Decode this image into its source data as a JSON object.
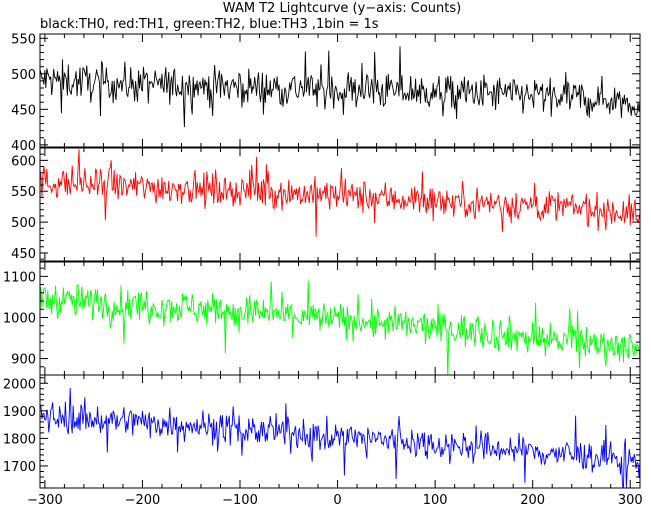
{
  "chart_data": {
    "type": "line",
    "title": "WAM T2 Lightcurve (y−axis: Counts)",
    "subtitle": "black:TH0, red:TH1, green:TH2, blue:TH3 ,1bin = 1s",
    "xlabel": "",
    "ylabel": "",
    "xlim": [
      -305,
      310
    ],
    "x_ticks": [
      -300,
      -200,
      -100,
      0,
      100,
      200,
      300
    ],
    "x_tick_labels": [
      "−300",
      "−200",
      "−100",
      "0",
      "100",
      "200",
      "300"
    ],
    "bin_seconds": 1,
    "grid": false,
    "legend": "none",
    "panels": [
      {
        "name": "TH0",
        "color": "#000000",
        "ylim": [
          397,
          556
        ],
        "y_ticks": [
          400,
          450,
          500,
          550
        ],
        "y_tick_labels": [
          "400",
          "450",
          "500",
          "550"
        ],
        "x": [
          -300,
          -275,
          -250,
          -225,
          -200,
          -175,
          -150,
          -125,
          -100,
          -75,
          -50,
          -25,
          0,
          25,
          50,
          75,
          100,
          125,
          150,
          175,
          200,
          225,
          250,
          275,
          300,
          310
        ],
        "values": [
          492,
          490,
          488,
          486,
          485,
          484,
          484,
          483,
          482,
          481,
          480,
          479,
          478,
          477,
          476,
          475,
          474,
          473,
          472,
          471,
          470,
          468,
          466,
          464,
          462,
          455
        ],
        "scatter": 24
      },
      {
        "name": "TH1",
        "color": "#ff0000",
        "ylim": [
          437,
          620
        ],
        "y_ticks": [
          450,
          500,
          550,
          600
        ],
        "y_tick_labels": [
          "450",
          "500",
          "550",
          "600"
        ],
        "x": [
          -300,
          -275,
          -250,
          -225,
          -200,
          -175,
          -150,
          -125,
          -100,
          -75,
          -50,
          -25,
          0,
          25,
          50,
          75,
          100,
          125,
          150,
          175,
          200,
          225,
          250,
          275,
          300,
          310
        ],
        "values": [
          565,
          563,
          560,
          558,
          557,
          556,
          555,
          553,
          551,
          549,
          547,
          545,
          543,
          541,
          539,
          537,
          535,
          533,
          531,
          529,
          527,
          525,
          522,
          518,
          515,
          505
        ],
        "scatter": 24
      },
      {
        "name": "TH2",
        "color": "#00ff00",
        "ylim": [
          860,
          1135
        ],
        "y_ticks": [
          900,
          1000,
          1100
        ],
        "y_tick_labels": [
          "900",
          "1000",
          "1100"
        ],
        "x": [
          -300,
          -275,
          -250,
          -225,
          -200,
          -175,
          -150,
          -125,
          -100,
          -75,
          -50,
          -25,
          0,
          25,
          50,
          75,
          100,
          125,
          150,
          175,
          200,
          225,
          250,
          275,
          300,
          310
        ],
        "values": [
          1045,
          1040,
          1036,
          1032,
          1030,
          1027,
          1024,
          1020,
          1015,
          1010,
          1005,
          1000,
          995,
          990,
          985,
          980,
          975,
          970,
          965,
          958,
          950,
          945,
          940,
          935,
          930,
          905
        ],
        "scatter": 38
      },
      {
        "name": "TH3",
        "color": "#0000ff",
        "ylim": [
          1620,
          2030
        ],
        "y_ticks": [
          1700,
          1800,
          1900,
          2000
        ],
        "y_tick_labels": [
          "1700",
          "1800",
          "1900",
          "2000"
        ],
        "x": [
          -300,
          -275,
          -250,
          -225,
          -200,
          -175,
          -150,
          -125,
          -100,
          -75,
          -50,
          -25,
          0,
          25,
          50,
          75,
          100,
          125,
          150,
          175,
          200,
          225,
          250,
          275,
          300,
          310
        ],
        "values": [
          1880,
          1875,
          1870,
          1865,
          1860,
          1855,
          1850,
          1840,
          1830,
          1825,
          1820,
          1812,
          1805,
          1800,
          1795,
          1788,
          1780,
          1772,
          1765,
          1760,
          1752,
          1745,
          1738,
          1730,
          1720,
          1690
        ],
        "scatter": 52
      }
    ]
  }
}
